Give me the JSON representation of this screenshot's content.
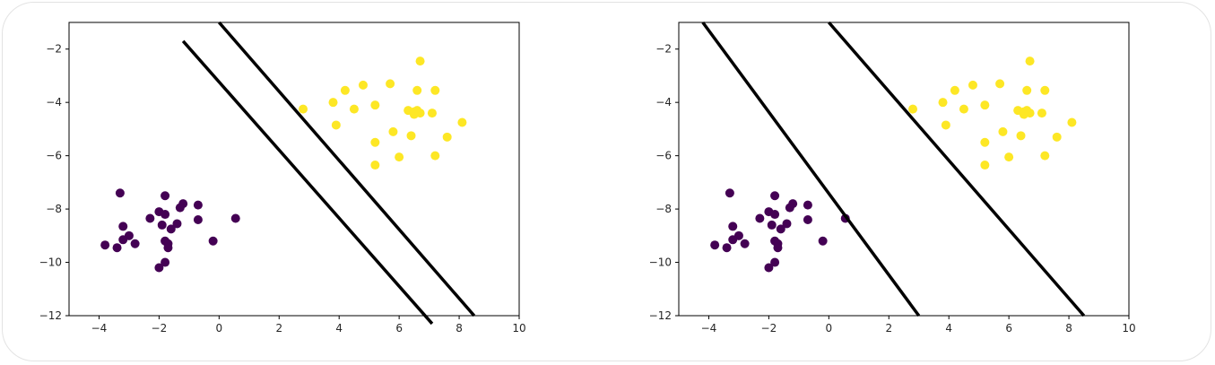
{
  "chart_data": [
    {
      "type": "scatter",
      "title": "",
      "xlabel": "",
      "ylabel": "",
      "xlim": [
        -5,
        10
      ],
      "ylim": [
        -12,
        -1
      ],
      "xticks": [
        -4,
        -2,
        0,
        2,
        4,
        6,
        8,
        10
      ],
      "yticks": [
        -2,
        -4,
        -6,
        -8,
        -10,
        -12
      ],
      "xtick_labels": [
        "−4",
        "−2",
        "0",
        "2",
        "4",
        "6",
        "8",
        "10"
      ],
      "ytick_labels": [
        "−2",
        "−4",
        "−6",
        "−8",
        "−10",
        "−12"
      ],
      "grid": false,
      "series": [
        {
          "color": "#440154",
          "points": [
            [
              -3.3,
              -7.4
            ],
            [
              -1.8,
              -7.5
            ],
            [
              -1.2,
              -7.8
            ],
            [
              -0.7,
              -7.85
            ],
            [
              -1.3,
              -7.95
            ],
            [
              -2.0,
              -8.1
            ],
            [
              -1.8,
              -8.2
            ],
            [
              -2.3,
              -8.35
            ],
            [
              -0.7,
              -8.4
            ],
            [
              0.55,
              -8.35
            ],
            [
              -1.4,
              -8.55
            ],
            [
              -1.9,
              -8.6
            ],
            [
              -3.2,
              -8.65
            ],
            [
              -1.6,
              -8.75
            ],
            [
              -3.0,
              -9.0
            ],
            [
              -3.2,
              -9.15
            ],
            [
              -2.8,
              -9.3
            ],
            [
              -1.8,
              -9.2
            ],
            [
              -0.2,
              -9.2
            ],
            [
              -3.8,
              -9.35
            ],
            [
              -3.4,
              -9.45
            ],
            [
              -1.7,
              -9.3
            ],
            [
              -1.7,
              -9.45
            ],
            [
              -1.8,
              -10.0
            ],
            [
              -2.0,
              -10.2
            ]
          ]
        },
        {
          "color": "#fde725",
          "points": [
            [
              6.7,
              -2.45
            ],
            [
              4.2,
              -3.55
            ],
            [
              4.8,
              -3.35
            ],
            [
              5.7,
              -3.3
            ],
            [
              6.6,
              -3.55
            ],
            [
              7.2,
              -3.55
            ],
            [
              3.8,
              -4.0
            ],
            [
              4.5,
              -4.25
            ],
            [
              5.2,
              -4.1
            ],
            [
              2.8,
              -4.25
            ],
            [
              6.3,
              -4.3
            ],
            [
              6.5,
              -4.35
            ],
            [
              6.6,
              -4.3
            ],
            [
              7.1,
              -4.4
            ],
            [
              3.9,
              -4.85
            ],
            [
              8.1,
              -4.75
            ],
            [
              5.8,
              -5.1
            ],
            [
              6.4,
              -5.25
            ],
            [
              7.6,
              -5.3
            ],
            [
              5.2,
              -5.5
            ],
            [
              6.0,
              -6.05
            ],
            [
              7.2,
              -6.0
            ],
            [
              5.2,
              -6.35
            ],
            [
              6.7,
              -4.4
            ],
            [
              6.5,
              -4.45
            ]
          ]
        }
      ],
      "lines": [
        {
          "x": [
            -1.2,
            7.1
          ],
          "y": [
            -1.7,
            -12.3
          ],
          "color": "#000000"
        },
        {
          "x": [
            0.0,
            8.5
          ],
          "y": [
            -1.0,
            -12.0
          ],
          "color": "#000000"
        }
      ]
    },
    {
      "type": "scatter",
      "title": "",
      "xlabel": "",
      "ylabel": "",
      "xlim": [
        -5,
        10
      ],
      "ylim": [
        -12,
        -1
      ],
      "xticks": [
        -4,
        -2,
        0,
        2,
        4,
        6,
        8,
        10
      ],
      "yticks": [
        -2,
        -4,
        -6,
        -8,
        -10,
        -12
      ],
      "xtick_labels": [
        "−4",
        "−2",
        "0",
        "2",
        "4",
        "6",
        "8",
        "10"
      ],
      "ytick_labels": [
        "−2",
        "−4",
        "−6",
        "−8",
        "−10",
        "−12"
      ],
      "grid": false,
      "series": [
        {
          "color": "#440154",
          "points": [
            [
              -3.3,
              -7.4
            ],
            [
              -1.8,
              -7.5
            ],
            [
              -1.2,
              -7.8
            ],
            [
              -0.7,
              -7.85
            ],
            [
              -1.3,
              -7.95
            ],
            [
              -2.0,
              -8.1
            ],
            [
              -1.8,
              -8.2
            ],
            [
              -2.3,
              -8.35
            ],
            [
              -0.7,
              -8.4
            ],
            [
              0.55,
              -8.35
            ],
            [
              -1.4,
              -8.55
            ],
            [
              -1.9,
              -8.6
            ],
            [
              -3.2,
              -8.65
            ],
            [
              -1.6,
              -8.75
            ],
            [
              -3.0,
              -9.0
            ],
            [
              -3.2,
              -9.15
            ],
            [
              -2.8,
              -9.3
            ],
            [
              -1.8,
              -9.2
            ],
            [
              -0.2,
              -9.2
            ],
            [
              -3.8,
              -9.35
            ],
            [
              -3.4,
              -9.45
            ],
            [
              -1.7,
              -9.3
            ],
            [
              -1.7,
              -9.45
            ],
            [
              -1.8,
              -10.0
            ],
            [
              -2.0,
              -10.2
            ]
          ]
        },
        {
          "color": "#fde725",
          "points": [
            [
              6.7,
              -2.45
            ],
            [
              4.2,
              -3.55
            ],
            [
              4.8,
              -3.35
            ],
            [
              5.7,
              -3.3
            ],
            [
              6.6,
              -3.55
            ],
            [
              7.2,
              -3.55
            ],
            [
              3.8,
              -4.0
            ],
            [
              4.5,
              -4.25
            ],
            [
              5.2,
              -4.1
            ],
            [
              2.8,
              -4.25
            ],
            [
              6.3,
              -4.3
            ],
            [
              6.5,
              -4.35
            ],
            [
              6.6,
              -4.3
            ],
            [
              7.1,
              -4.4
            ],
            [
              3.9,
              -4.85
            ],
            [
              8.1,
              -4.75
            ],
            [
              5.8,
              -5.1
            ],
            [
              6.4,
              -5.25
            ],
            [
              7.6,
              -5.3
            ],
            [
              5.2,
              -5.5
            ],
            [
              6.0,
              -6.05
            ],
            [
              7.2,
              -6.0
            ],
            [
              5.2,
              -6.35
            ],
            [
              6.7,
              -4.4
            ],
            [
              6.5,
              -4.45
            ]
          ]
        }
      ],
      "lines": [
        {
          "x": [
            -4.2,
            3.0
          ],
          "y": [
            -1.0,
            -12.0
          ],
          "color": "#000000"
        },
        {
          "x": [
            0.0,
            8.5
          ],
          "y": [
            -1.0,
            -12.0
          ],
          "color": "#000000"
        }
      ]
    }
  ]
}
